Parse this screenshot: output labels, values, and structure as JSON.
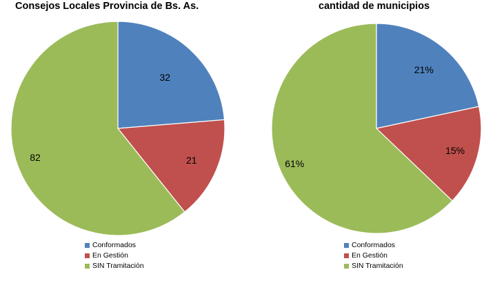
{
  "chart_data": [
    {
      "type": "pie",
      "title": "Consejos Locales Provincia de Bs. As.",
      "categories": [
        "Conformados",
        "En Gestión",
        "SIN Tramitación"
      ],
      "values": [
        32,
        21,
        82
      ],
      "data_labels": [
        "32",
        "21",
        "82"
      ],
      "colors": [
        "#4F81BD",
        "#C0504D",
        "#9BBB59"
      ],
      "legend": "bottom"
    },
    {
      "type": "pie",
      "title": "cantidad de municipios",
      "categories": [
        "Conformados",
        "En Gestión",
        "SIN Tramitación"
      ],
      "values": [
        21,
        15,
        61
      ],
      "data_labels": [
        "21%",
        "15%",
        "61%"
      ],
      "colors": [
        "#4F81BD",
        "#C0504D",
        "#9BBB59"
      ],
      "legend": "bottom"
    }
  ]
}
